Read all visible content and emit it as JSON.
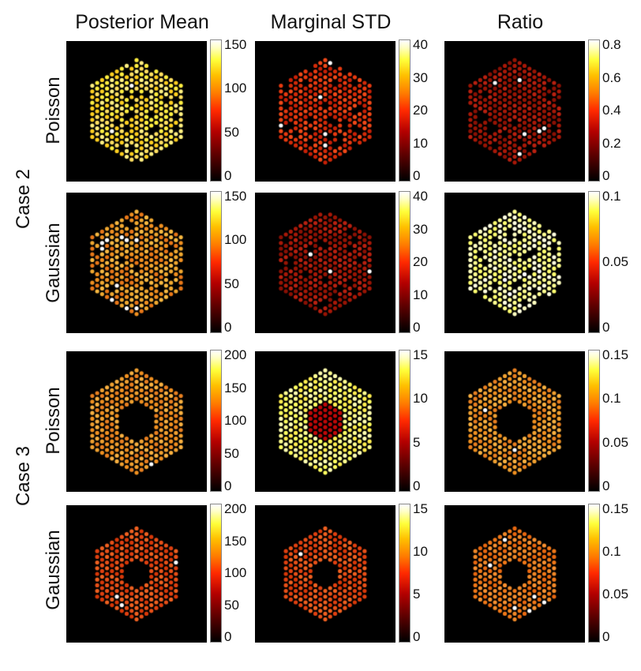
{
  "column_titles": [
    "Posterior Mean",
    "Marginal STD",
    "Ratio"
  ],
  "case_labels": [
    "Case 2",
    "Case 3"
  ],
  "noise_labels": [
    "Poisson",
    "Gaussian",
    "Poisson",
    "Gaussian"
  ],
  "colorbar_ticks": [
    [
      [
        "150",
        "100",
        "50",
        "0"
      ],
      [
        "40",
        "30",
        "20",
        "10",
        "0"
      ],
      [
        "0.8",
        "0.6",
        "0.4",
        "0.2",
        "0"
      ]
    ],
    [
      [
        "150",
        "100",
        "50",
        "0"
      ],
      [
        "40",
        "30",
        "20",
        "10",
        "0"
      ],
      [
        "0.1",
        "0.05",
        "0"
      ]
    ],
    [
      [
        "200",
        "150",
        "100",
        "50",
        "0"
      ],
      [
        "15",
        "10",
        "5",
        "0"
      ],
      [
        "0.15",
        "0.1",
        "0.05",
        "0"
      ]
    ],
    [
      [
        "200",
        "150",
        "100",
        "50",
        "0"
      ],
      [
        "15",
        "10",
        "5",
        "0"
      ],
      [
        "0.15",
        "0.1",
        "0.05",
        "0"
      ]
    ]
  ],
  "colormap": "hot",
  "colors": {
    "background": "#000000",
    "page": "#ffffff"
  }
}
